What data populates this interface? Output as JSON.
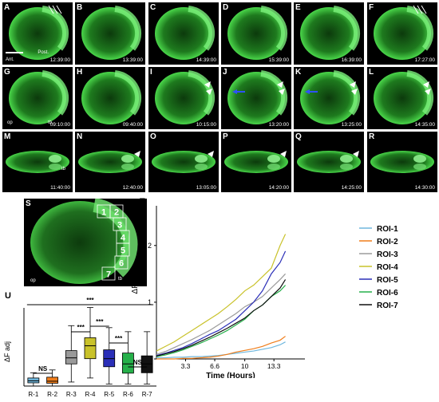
{
  "rows": [
    {
      "panels": [
        {
          "label": "A",
          "time": "12:39:00",
          "extras": {
            "ant": "Ant.",
            "post": "Post."
          }
        },
        {
          "label": "B",
          "time": "13:39:00"
        },
        {
          "label": "C",
          "time": "14:39:00"
        },
        {
          "label": "D",
          "time": "15:39:00"
        },
        {
          "label": "E",
          "time": "16:39:00"
        },
        {
          "label": "F",
          "time": "17:27:00"
        }
      ]
    },
    {
      "panels": [
        {
          "label": "G",
          "time": "09:10:00",
          "extras": {
            "op": "op",
            "tb": "tb"
          }
        },
        {
          "label": "H",
          "time": "09:40:00"
        },
        {
          "label": "I",
          "time": "10:15:00"
        },
        {
          "label": "J",
          "time": "13:20:00"
        },
        {
          "label": "K",
          "time": "13:25:00"
        },
        {
          "label": "L",
          "time": "14:35:00"
        }
      ]
    },
    {
      "panels": [
        {
          "label": "M",
          "time": "11:40:00",
          "extras": {
            "tb": "tb"
          }
        },
        {
          "label": "N",
          "time": "12:40:00"
        },
        {
          "label": "O",
          "time": "13:05:00"
        },
        {
          "label": "P",
          "time": "14:20:00"
        },
        {
          "label": "Q",
          "time": "14:25:00"
        },
        {
          "label": "R",
          "time": "14:30:00"
        }
      ]
    }
  ],
  "panel_s": {
    "label": "S",
    "rois": [
      "1",
      "2",
      "3",
      "4",
      "5",
      "6",
      "7"
    ],
    "op": "op",
    "tb": "tb"
  },
  "panel_t_label": "T",
  "panel_u_label": "U",
  "colors": {
    "roi1": "#6fb7dd",
    "roi2": "#f07d1a",
    "roi3": "#9a9a9a",
    "roi4": "#c9c22a",
    "roi5": "#2b2fb8",
    "roi6": "#26b04a",
    "roi7": "#111111",
    "green": "#37d437"
  },
  "chart_data": [
    {
      "type": "line",
      "xlabel": "Time (Hours)",
      "ylabel": "ΔF adj",
      "x_ticks": [
        "3.3",
        "6.6",
        "10",
        "13.3"
      ],
      "x_tick_values": [
        3.3,
        6.6,
        10,
        13.3
      ],
      "y_ticks": [
        "0",
        "1",
        "2"
      ],
      "xlim": [
        0,
        15
      ],
      "ylim": [
        0,
        2.7
      ],
      "x": [
        0,
        1,
        2,
        3,
        4,
        5,
        6,
        7,
        8,
        9,
        10,
        11,
        12,
        13,
        14,
        14.6
      ],
      "series": [
        {
          "name": "ROI-1",
          "values": [
            0.02,
            0.02,
            0.03,
            0.03,
            0.04,
            0.04,
            0.05,
            0.06,
            0.08,
            0.1,
            0.12,
            0.14,
            0.17,
            0.2,
            0.25,
            0.3
          ]
        },
        {
          "name": "ROI-2",
          "values": [
            0.0,
            0.0,
            0.0,
            0.01,
            0.01,
            0.02,
            0.03,
            0.05,
            0.08,
            0.12,
            0.15,
            0.18,
            0.22,
            0.28,
            0.33,
            0.4
          ]
        },
        {
          "name": "ROI-3",
          "values": [
            0.08,
            0.13,
            0.2,
            0.27,
            0.34,
            0.42,
            0.5,
            0.6,
            0.7,
            0.8,
            0.92,
            1.0,
            1.1,
            1.25,
            1.4,
            1.5
          ]
        },
        {
          "name": "ROI-4",
          "values": [
            0.14,
            0.22,
            0.3,
            0.4,
            0.5,
            0.6,
            0.7,
            0.8,
            0.92,
            1.05,
            1.2,
            1.3,
            1.45,
            1.6,
            2.0,
            2.2
          ]
        },
        {
          "name": "ROI-5",
          "values": [
            0.06,
            0.1,
            0.15,
            0.2,
            0.27,
            0.35,
            0.43,
            0.5,
            0.6,
            0.7,
            0.85,
            1.0,
            1.2,
            1.5,
            1.7,
            1.9
          ]
        },
        {
          "name": "ROI-6",
          "values": [
            0.04,
            0.07,
            0.11,
            0.16,
            0.22,
            0.28,
            0.35,
            0.42,
            0.5,
            0.6,
            0.7,
            0.85,
            0.95,
            1.1,
            1.2,
            1.3
          ]
        },
        {
          "name": "ROI-7",
          "values": [
            0.05,
            0.09,
            0.13,
            0.18,
            0.24,
            0.31,
            0.38,
            0.46,
            0.54,
            0.63,
            0.72,
            0.85,
            0.95,
            1.1,
            1.25,
            1.4
          ]
        }
      ]
    },
    {
      "type": "box",
      "ylabel": "ΔF adj",
      "categories": [
        "R-1",
        "R-2",
        "R-3",
        "R-4",
        "R-5",
        "R-6",
        "R-7"
      ],
      "ylim": [
        0,
        2.1
      ],
      "boxes": [
        {
          "min": 0.0,
          "q1": 0.08,
          "median": 0.13,
          "q3": 0.2,
          "max": 0.33
        },
        {
          "min": 0.0,
          "q1": 0.07,
          "median": 0.12,
          "q3": 0.22,
          "max": 0.4
        },
        {
          "min": 0.1,
          "q1": 0.55,
          "median": 0.7,
          "q3": 0.88,
          "max": 1.5
        },
        {
          "min": 0.2,
          "q1": 0.68,
          "median": 1.0,
          "q3": 1.2,
          "max": 1.95
        },
        {
          "min": 0.05,
          "q1": 0.48,
          "median": 0.68,
          "q3": 0.9,
          "max": 1.45
        },
        {
          "min": 0.05,
          "q1": 0.32,
          "median": 0.55,
          "q3": 0.82,
          "max": 1.35
        },
        {
          "min": 0.05,
          "q1": 0.33,
          "median": 0.55,
          "q3": 0.75,
          "max": 1.35
        }
      ],
      "annotations": [
        {
          "text": "***",
          "from": "R-1",
          "to": "R-7"
        },
        {
          "text": "NS",
          "from": "R-1",
          "to": "R-2"
        },
        {
          "text": "***",
          "from": "R-3",
          "to": "R-4"
        },
        {
          "text": "***",
          "from": "R-4",
          "to": "R-5"
        },
        {
          "text": "***",
          "from": "R-5",
          "to": "R-6"
        },
        {
          "text": "NS",
          "from": "R-6",
          "to": "R-7"
        }
      ]
    }
  ]
}
